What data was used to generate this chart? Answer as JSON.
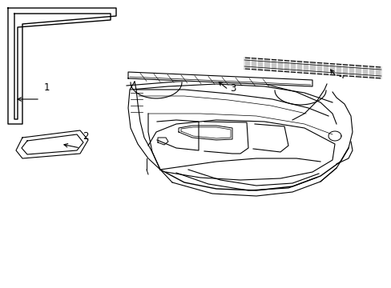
{
  "background_color": "#ffffff",
  "line_color": "#000000",
  "fig_width": 4.89,
  "fig_height": 3.6,
  "dpi": 100,
  "label_fontsize": 8.5
}
